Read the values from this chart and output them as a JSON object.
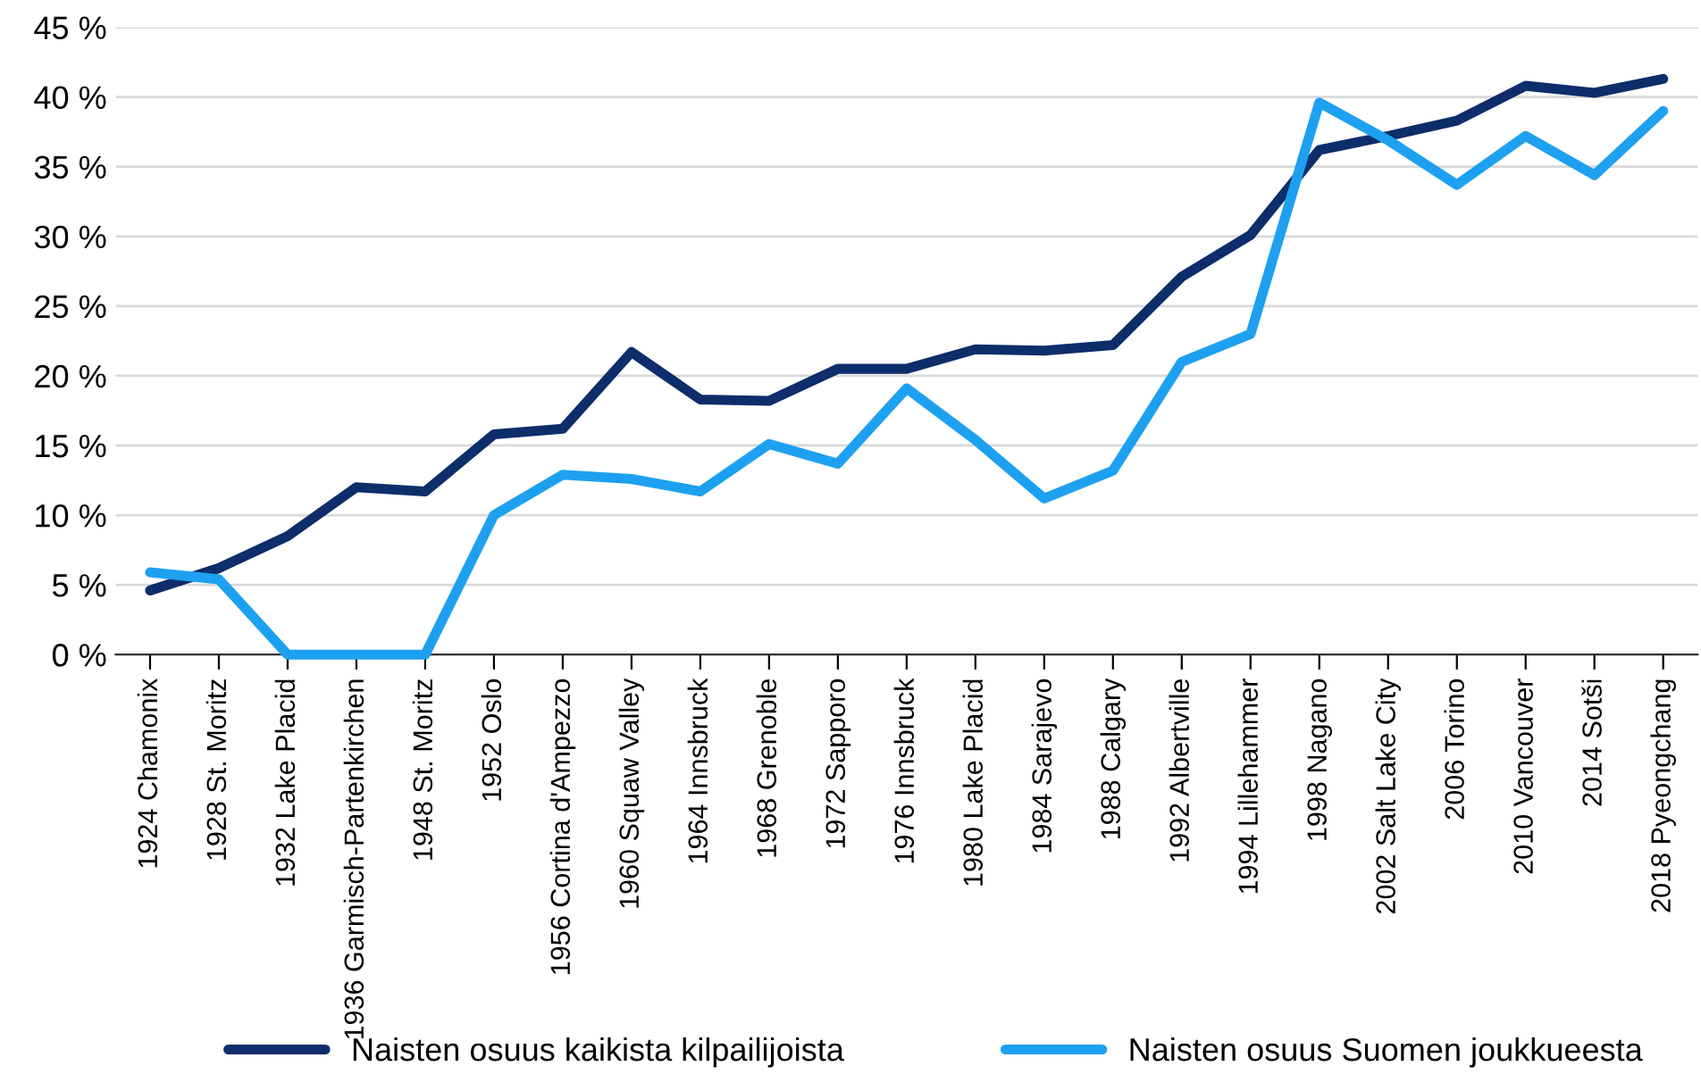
{
  "chart_data": {
    "type": "line",
    "categories": [
      "1924 Chamonix",
      "1928 St. Moritz",
      "1932 Lake Placid",
      "1936 Garmisch-Partenkirchen",
      "1948 St. Moritz",
      "1952 Oslo",
      "1956 Cortina d'Ampezzo",
      "1960 Squaw Valley",
      "1964 Innsbruck",
      "1968 Grenoble",
      "1972 Sapporo",
      "1976 Innsbruck",
      "1980 Lake Placid",
      "1984 Sarajevo",
      "1988 Calgary",
      "1992 Albertville",
      "1994 Lillehammer",
      "1998 Nagano",
      "2002 Salt Lake City",
      "2006 Torino",
      "2010 Vancouver",
      "2014 Sotši",
      "2018 Pyeongchang"
    ],
    "series": [
      {
        "name": "Naisten osuus kaikista kilpailijoista",
        "color": "#0d2d6b",
        "values": [
          4.6,
          6.2,
          8.5,
          12.0,
          11.7,
          15.8,
          16.2,
          21.7,
          18.3,
          18.2,
          20.5,
          20.5,
          21.9,
          21.8,
          22.2,
          27.1,
          30.1,
          36.2,
          37.2,
          38.3,
          40.8,
          40.3,
          41.3
        ]
      },
      {
        "name": "Naisten osuus Suomen joukkueesta",
        "color": "#1ea0f0",
        "values": [
          5.9,
          5.4,
          0,
          0,
          0,
          10.0,
          12.9,
          12.6,
          11.7,
          15.1,
          13.7,
          19.1,
          15.4,
          11.2,
          13.2,
          21.0,
          23.0,
          39.6,
          36.9,
          33.7,
          37.2,
          34.4,
          39.0
        ]
      }
    ],
    "ylim": [
      0,
      45
    ],
    "yticks": [
      {
        "value": 0,
        "label": "0 %"
      },
      {
        "value": 5,
        "label": "5 %"
      },
      {
        "value": 10,
        "label": "10 %"
      },
      {
        "value": 15,
        "label": "15 %"
      },
      {
        "value": 20,
        "label": "20 %"
      },
      {
        "value": 25,
        "label": "25 %"
      },
      {
        "value": 30,
        "label": "30 %"
      },
      {
        "value": 35,
        "label": "35 %"
      },
      {
        "value": 40,
        "label": "40 %"
      },
      {
        "value": 45,
        "label": "45 %"
      }
    ],
    "grid": "y",
    "legend": "bottom",
    "marker": "none",
    "line_style": "solid"
  }
}
